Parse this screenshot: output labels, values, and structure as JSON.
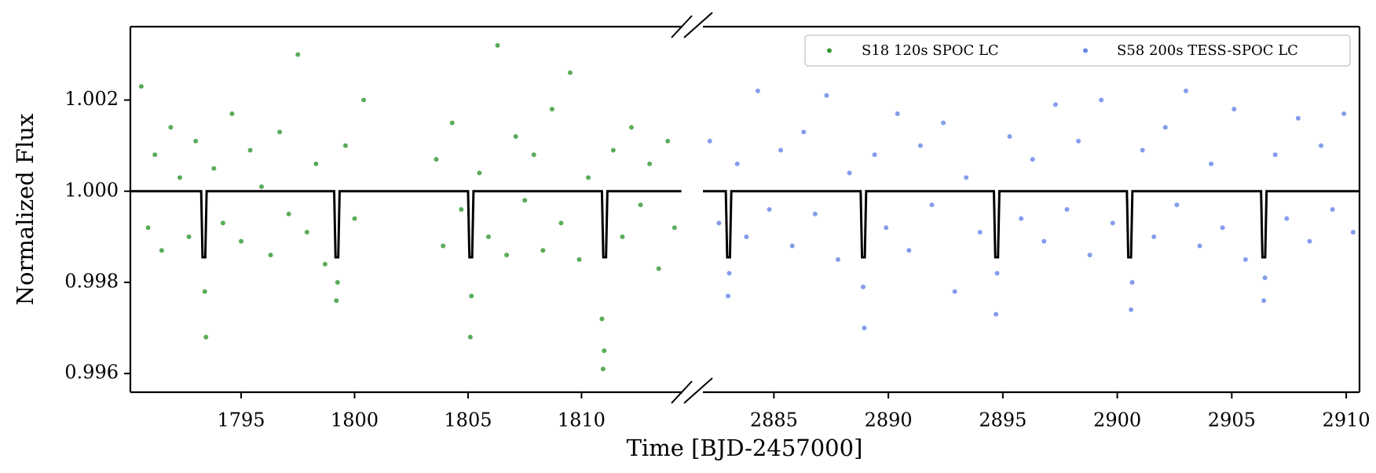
{
  "chart_data": {
    "type": "scatter",
    "xlabel": "Time [BJD-2457000]",
    "ylabel": "Normalized Flux",
    "ylim": [
      0.99559,
      1.00361
    ],
    "yticks": [
      0.996,
      0.998,
      {
        "value": 1,
        "label": "1.000"
      },
      1.002
    ],
    "legend": "upper right",
    "panels": [
      {
        "xlim": [
          1790.12,
          1814.45
        ],
        "xticks": [
          1795,
          1800,
          1805,
          1810
        ]
      },
      {
        "xlim": [
          2881.9,
          2910.58
        ],
        "xticks": [
          2885,
          2890,
          2895,
          2900,
          2905,
          2910
        ]
      }
    ],
    "series": [
      {
        "name": "S18 120s SPOC LC",
        "color": "#008000",
        "panel": 0,
        "x": [
          1790.6,
          1790.9,
          1791.2,
          1791.5,
          1791.9,
          1792.3,
          1792.7,
          1793.0,
          1793.4,
          1793.45,
          1793.8,
          1794.2,
          1794.6,
          1795.0,
          1795.4,
          1795.9,
          1796.3,
          1796.7,
          1797.1,
          1797.5,
          1797.9,
          1798.3,
          1798.7,
          1799.2,
          1799.25,
          1799.6,
          1800.0,
          1800.4,
          1803.6,
          1803.9,
          1804.3,
          1804.7,
          1805.1,
          1805.15,
          1805.5,
          1805.9,
          1806.3,
          1806.7,
          1807.1,
          1807.5,
          1807.9,
          1808.3,
          1808.7,
          1809.1,
          1809.5,
          1809.9,
          1810.3,
          1810.9,
          1810.95,
          1811.0,
          1811.4,
          1811.8,
          1812.2,
          1812.6,
          1813.0,
          1813.4,
          1813.8,
          1814.1
        ],
        "values": [
          1.0023,
          0.9992,
          1.0008,
          0.9987,
          1.0014,
          1.0003,
          0.999,
          1.0011,
          0.9978,
          0.9968,
          1.0005,
          0.9993,
          1.0017,
          0.9989,
          1.0009,
          1.0001,
          0.9986,
          1.0013,
          0.9995,
          1.003,
          0.9991,
          1.0006,
          0.9984,
          0.9976,
          0.998,
          1.001,
          0.9994,
          1.002,
          1.0007,
          0.9988,
          1.0015,
          0.9996,
          0.9968,
          0.9977,
          1.0004,
          0.999,
          1.0032,
          0.9986,
          1.0012,
          0.9998,
          1.0008,
          0.9987,
          1.0018,
          0.9993,
          1.0026,
          0.9985,
          1.0003,
          0.9972,
          0.9961,
          0.9965,
          1.0009,
          0.999,
          1.0014,
          0.9997,
          1.0006,
          0.9983,
          1.0011,
          0.9992
        ]
      },
      {
        "name": "S58 200s TESS-SPOC LC",
        "color": "#4169e1",
        "panel": 1,
        "x": [
          2882.2,
          2882.6,
          2883.0,
          2883.05,
          2883.4,
          2883.8,
          2884.3,
          2884.8,
          2885.3,
          2885.8,
          2886.3,
          2886.8,
          2887.3,
          2887.8,
          2888.3,
          2888.9,
          2888.95,
          2889.4,
          2889.9,
          2890.4,
          2890.9,
          2891.4,
          2891.9,
          2892.4,
          2892.9,
          2893.4,
          2894.0,
          2894.7,
          2894.75,
          2895.3,
          2895.8,
          2896.3,
          2896.8,
          2897.3,
          2897.8,
          2898.3,
          2898.8,
          2899.3,
          2899.8,
          2900.6,
          2900.65,
          2901.1,
          2901.6,
          2902.1,
          2902.6,
          2903.0,
          2903.6,
          2904.1,
          2904.6,
          2905.1,
          2905.6,
          2906.4,
          2906.45,
          2906.9,
          2907.4,
          2907.9,
          2908.4,
          2908.9,
          2909.4,
          2909.9,
          2910.3
        ],
        "values": [
          1.0011,
          0.9993,
          0.9977,
          0.9982,
          1.0006,
          0.999,
          1.0022,
          0.9996,
          1.0009,
          0.9988,
          1.0013,
          0.9995,
          1.0021,
          0.9985,
          1.0004,
          0.9979,
          0.997,
          1.0008,
          0.9992,
          1.0017,
          0.9987,
          1.001,
          0.9997,
          1.0015,
          0.9978,
          1.0003,
          0.9991,
          0.9973,
          0.9982,
          1.0012,
          0.9994,
          1.0007,
          0.9989,
          1.0019,
          0.9996,
          1.0011,
          0.9986,
          1.002,
          0.9993,
          0.9974,
          0.998,
          1.0009,
          0.999,
          1.0014,
          0.9997,
          1.0022,
          0.9988,
          1.0006,
          0.9992,
          1.0018,
          0.9985,
          0.9976,
          0.9981,
          1.0008,
          0.9994,
          1.0016,
          0.9989,
          1.001,
          0.9996,
          1.0017,
          0.9991
        ]
      },
      {
        "style": "line",
        "color": "#000000",
        "panel": 0,
        "x": [
          1790.12,
          1793.24,
          1793.3,
          1793.42,
          1793.48,
          1799.1,
          1799.16,
          1799.28,
          1799.34,
          1805.0,
          1805.06,
          1805.18,
          1805.24,
          1810.9,
          1810.96,
          1811.08,
          1811.14,
          1814.4
        ],
        "values": [
          1,
          1,
          0.99855,
          0.99855,
          1,
          1,
          0.99855,
          0.99855,
          1,
          1,
          0.99855,
          0.99855,
          1,
          1,
          0.99855,
          0.99855,
          1,
          1
        ]
      },
      {
        "style": "line",
        "color": "#000000",
        "panel": 1,
        "x": [
          2881.9,
          2882.9,
          2882.96,
          2883.08,
          2883.14,
          2888.79,
          2888.85,
          2888.97,
          2889.03,
          2894.61,
          2894.67,
          2894.79,
          2894.85,
          2900.42,
          2900.48,
          2900.6,
          2900.66,
          2906.28,
          2906.34,
          2906.46,
          2906.52,
          2910.58
        ],
        "values": [
          1,
          1,
          0.99855,
          0.99855,
          1,
          1,
          0.99855,
          0.99855,
          1,
          1,
          0.99855,
          0.99855,
          1,
          1,
          0.99855,
          0.99855,
          1,
          1,
          0.99855,
          0.99855,
          1,
          1
        ]
      }
    ]
  }
}
